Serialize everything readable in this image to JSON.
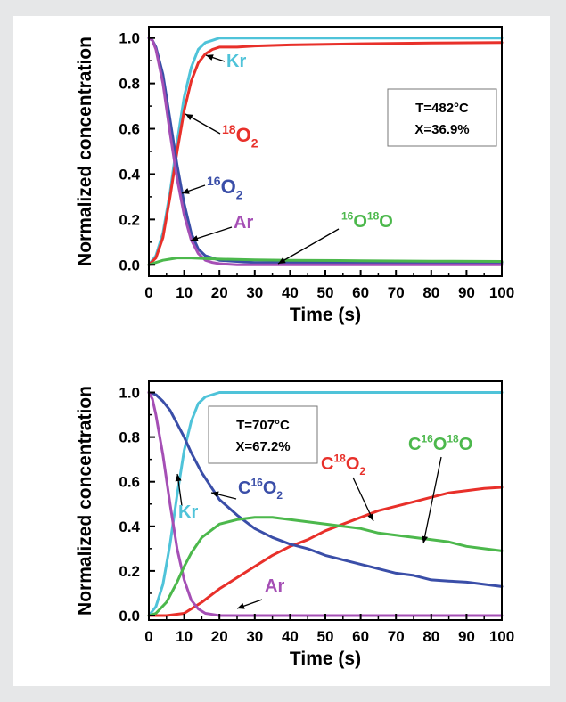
{
  "chart_data": [
    {
      "type": "line",
      "xlabel": "Time (s)",
      "ylabel": "Normalized concentration",
      "xlim": [
        0,
        100
      ],
      "ylim": [
        -0.05,
        1.05
      ],
      "xticks": [
        "0",
        "10",
        "20",
        "30",
        "40",
        "50",
        "60",
        "70",
        "80",
        "90",
        "100"
      ],
      "yticks": [
        "0.0",
        "0.2",
        "0.4",
        "0.6",
        "0.8",
        "1.0"
      ],
      "condition_box": [
        "T=482°C",
        "X=36.9%"
      ],
      "series": [
        {
          "name": "Kr",
          "color": "#4fc3d9",
          "x": [
            0,
            2,
            4,
            6,
            8,
            10,
            12,
            14,
            16,
            18,
            20,
            25,
            30,
            40,
            60,
            80,
            100
          ],
          "y": [
            0.0,
            0.04,
            0.14,
            0.32,
            0.54,
            0.74,
            0.87,
            0.95,
            0.98,
            0.99,
            1.0,
            1.0,
            1.0,
            1.0,
            1.0,
            1.0,
            1.0
          ]
        },
        {
          "name": "18O2",
          "color": "#e8302a",
          "x": [
            0,
            2,
            4,
            6,
            8,
            10,
            12,
            14,
            16,
            18,
            20,
            25,
            30,
            40,
            60,
            80,
            100
          ],
          "y": [
            0.0,
            0.03,
            0.12,
            0.3,
            0.5,
            0.68,
            0.81,
            0.89,
            0.93,
            0.95,
            0.96,
            0.96,
            0.965,
            0.97,
            0.975,
            0.978,
            0.98
          ]
        },
        {
          "name": "16O2",
          "color": "#3a4ea8",
          "x": [
            0,
            1,
            2,
            4,
            6,
            8,
            10,
            12,
            14,
            16,
            18,
            20,
            25,
            30,
            40,
            60,
            80,
            100
          ],
          "y": [
            1.0,
            0.99,
            0.96,
            0.84,
            0.64,
            0.44,
            0.27,
            0.14,
            0.07,
            0.04,
            0.03,
            0.02,
            0.015,
            0.01,
            0.01,
            0.01,
            0.01,
            0.01
          ]
        },
        {
          "name": "Ar",
          "color": "#a54fb5",
          "x": [
            0,
            1,
            2,
            4,
            6,
            8,
            10,
            12,
            14,
            16,
            18,
            20,
            25,
            30,
            40,
            60,
            80,
            100
          ],
          "y": [
            1.0,
            0.99,
            0.95,
            0.8,
            0.58,
            0.38,
            0.22,
            0.11,
            0.05,
            0.02,
            0.01,
            0.005,
            0.0,
            0.0,
            0.0,
            0.0,
            0.0,
            0.0
          ]
        },
        {
          "name": "16O18O",
          "color": "#4cb84c",
          "x": [
            0,
            2,
            4,
            6,
            8,
            10,
            12,
            15,
            20,
            30,
            40,
            60,
            80,
            100
          ],
          "y": [
            0.0,
            0.01,
            0.02,
            0.025,
            0.03,
            0.03,
            0.03,
            0.028,
            0.025,
            0.022,
            0.02,
            0.018,
            0.016,
            0.015
          ]
        }
      ],
      "labels": [
        {
          "series": "Kr",
          "base": "Kr",
          "pre": "",
          "sub": ""
        },
        {
          "series": "18O2",
          "base": "O",
          "pre": "18",
          "sub": "2"
        },
        {
          "series": "16O2",
          "base": "O",
          "pre": "16",
          "sub": "2"
        },
        {
          "series": "Ar",
          "base": "Ar",
          "pre": "",
          "sub": ""
        },
        {
          "series": "16O18O",
          "parts": [
            {
              "sup": "16"
            },
            {
              "t": "O"
            },
            {
              "sup": "18"
            },
            {
              "t": "O"
            }
          ]
        }
      ]
    },
    {
      "type": "line",
      "xlabel": "Time (s)",
      "ylabel": "Normalized concentration",
      "xlim": [
        0,
        100
      ],
      "ylim": [
        -0.02,
        1.05
      ],
      "xticks": [
        "0",
        "10",
        "20",
        "30",
        "40",
        "50",
        "60",
        "70",
        "80",
        "90",
        "100"
      ],
      "yticks": [
        "0.0",
        "0.2",
        "0.4",
        "0.6",
        "0.8",
        "1.0"
      ],
      "condition_box": [
        "T=707°C",
        "X=67.2%"
      ],
      "series": [
        {
          "name": "Kr",
          "color": "#4fc3d9",
          "x": [
            0,
            2,
            4,
            6,
            8,
            10,
            12,
            14,
            16,
            18,
            20,
            25,
            30,
            40,
            60,
            80,
            100
          ],
          "y": [
            0.0,
            0.04,
            0.14,
            0.32,
            0.54,
            0.74,
            0.87,
            0.95,
            0.98,
            0.99,
            1.0,
            1.0,
            1.0,
            1.0,
            1.0,
            1.0,
            1.0
          ]
        },
        {
          "name": "C18O2",
          "color": "#e8302a",
          "x": [
            0,
            5,
            10,
            12,
            15,
            20,
            25,
            30,
            35,
            40,
            45,
            50,
            55,
            60,
            65,
            70,
            75,
            80,
            85,
            90,
            95,
            100
          ],
          "y": [
            0.0,
            0.0,
            0.01,
            0.03,
            0.06,
            0.12,
            0.17,
            0.22,
            0.27,
            0.31,
            0.34,
            0.38,
            0.41,
            0.44,
            0.47,
            0.49,
            0.51,
            0.53,
            0.55,
            0.56,
            0.57,
            0.575
          ]
        },
        {
          "name": "C16O2",
          "color": "#3a4ea8",
          "x": [
            0,
            2,
            4,
            6,
            8,
            10,
            12,
            15,
            20,
            25,
            30,
            35,
            40,
            45,
            50,
            55,
            60,
            65,
            70,
            75,
            80,
            85,
            90,
            95,
            100
          ],
          "y": [
            1.0,
            0.99,
            0.96,
            0.92,
            0.86,
            0.8,
            0.73,
            0.64,
            0.52,
            0.45,
            0.39,
            0.35,
            0.32,
            0.3,
            0.27,
            0.25,
            0.23,
            0.21,
            0.19,
            0.18,
            0.16,
            0.155,
            0.15,
            0.14,
            0.13
          ]
        },
        {
          "name": "Ar",
          "color": "#a54fb5",
          "x": [
            0,
            1,
            2,
            4,
            6,
            8,
            10,
            12,
            14,
            16,
            18,
            20,
            25,
            30,
            40,
            60,
            80,
            100
          ],
          "y": [
            1.0,
            0.97,
            0.9,
            0.72,
            0.5,
            0.3,
            0.16,
            0.07,
            0.03,
            0.01,
            0.005,
            0.0,
            0.0,
            0.0,
            0.0,
            0.0,
            0.0,
            0.0
          ]
        },
        {
          "name": "C16O18O",
          "color": "#4cb84c",
          "x": [
            0,
            2,
            5,
            8,
            10,
            12,
            15,
            20,
            25,
            30,
            35,
            40,
            45,
            50,
            55,
            60,
            65,
            70,
            75,
            80,
            85,
            90,
            95,
            100
          ],
          "y": [
            0.0,
            0.01,
            0.06,
            0.15,
            0.22,
            0.28,
            0.35,
            0.41,
            0.43,
            0.44,
            0.44,
            0.43,
            0.42,
            0.41,
            0.4,
            0.39,
            0.37,
            0.36,
            0.35,
            0.34,
            0.33,
            0.31,
            0.3,
            0.29
          ]
        }
      ],
      "labels": [
        {
          "series": "C16O18O",
          "parts": [
            {
              "t": "C"
            },
            {
              "sup": "16"
            },
            {
              "t": "O"
            },
            {
              "sup": "18"
            },
            {
              "t": "O"
            }
          ]
        },
        {
          "series": "C18O2",
          "parts": [
            {
              "t": "C"
            },
            {
              "sup": "18"
            },
            {
              "t": "O"
            },
            {
              "sub": "2"
            }
          ]
        },
        {
          "series": "C16O2",
          "parts": [
            {
              "t": "C"
            },
            {
              "sup": "16"
            },
            {
              "t": "O"
            },
            {
              "sub": "2"
            }
          ]
        },
        {
          "series": "Kr",
          "parts": [
            {
              "t": "Kr"
            }
          ]
        },
        {
          "series": "Ar",
          "parts": [
            {
              "t": "Ar"
            }
          ]
        }
      ]
    }
  ]
}
